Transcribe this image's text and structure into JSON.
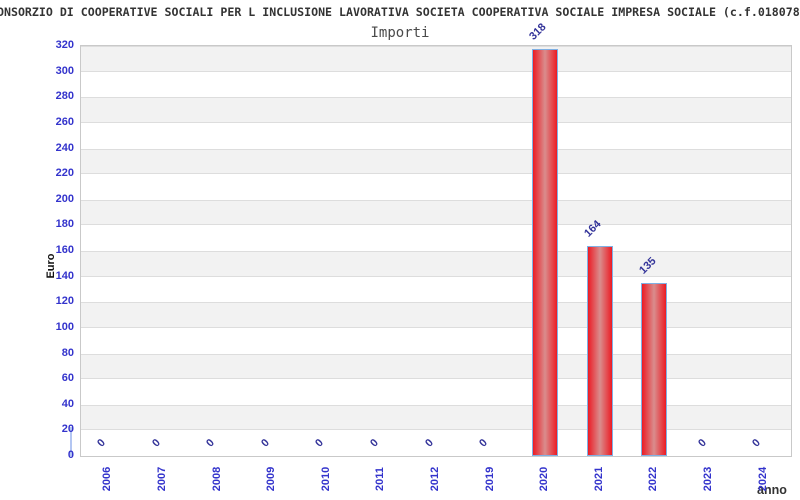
{
  "page_title": "ONSORZIO DI COOPERATIVE SOCIALI PER L INCLUSIONE LAVORATIVA SOCIETA COOPERATIVA SOCIALE IMPRESA SOCIALE (c.f.018078",
  "chart_data": {
    "type": "bar",
    "title": "Importi",
    "xlabel": "anno",
    "ylabel": "Euro",
    "categories": [
      "2006",
      "2007",
      "2008",
      "2009",
      "2010",
      "2011",
      "2012",
      "2019",
      "2020",
      "2021",
      "2022",
      "2023",
      "2024"
    ],
    "values": [
      0,
      0,
      0,
      0,
      0,
      0,
      0,
      0,
      318,
      164,
      135,
      0,
      0
    ],
    "ylim": [
      0,
      320
    ],
    "ytick_step": 20,
    "legend": "none",
    "grid": "alternating horizontal bands, white and light gray",
    "value_label_rotation_deg": 45,
    "xtick_rotation_deg": 90
  },
  "colors": {
    "tick_label": "#3333cc",
    "value_label": "#333399",
    "bar_edge": "#7fb0e4",
    "bar_fill_edge": "#ec1b24",
    "bar_fill_center": "#d98d8d",
    "band_gray": "#f2f2f2",
    "band_white": "#ffffff",
    "grid_line": "#dddddd",
    "plot_border": "#c9c9c9",
    "axis_segment": "#b3c6f2"
  }
}
